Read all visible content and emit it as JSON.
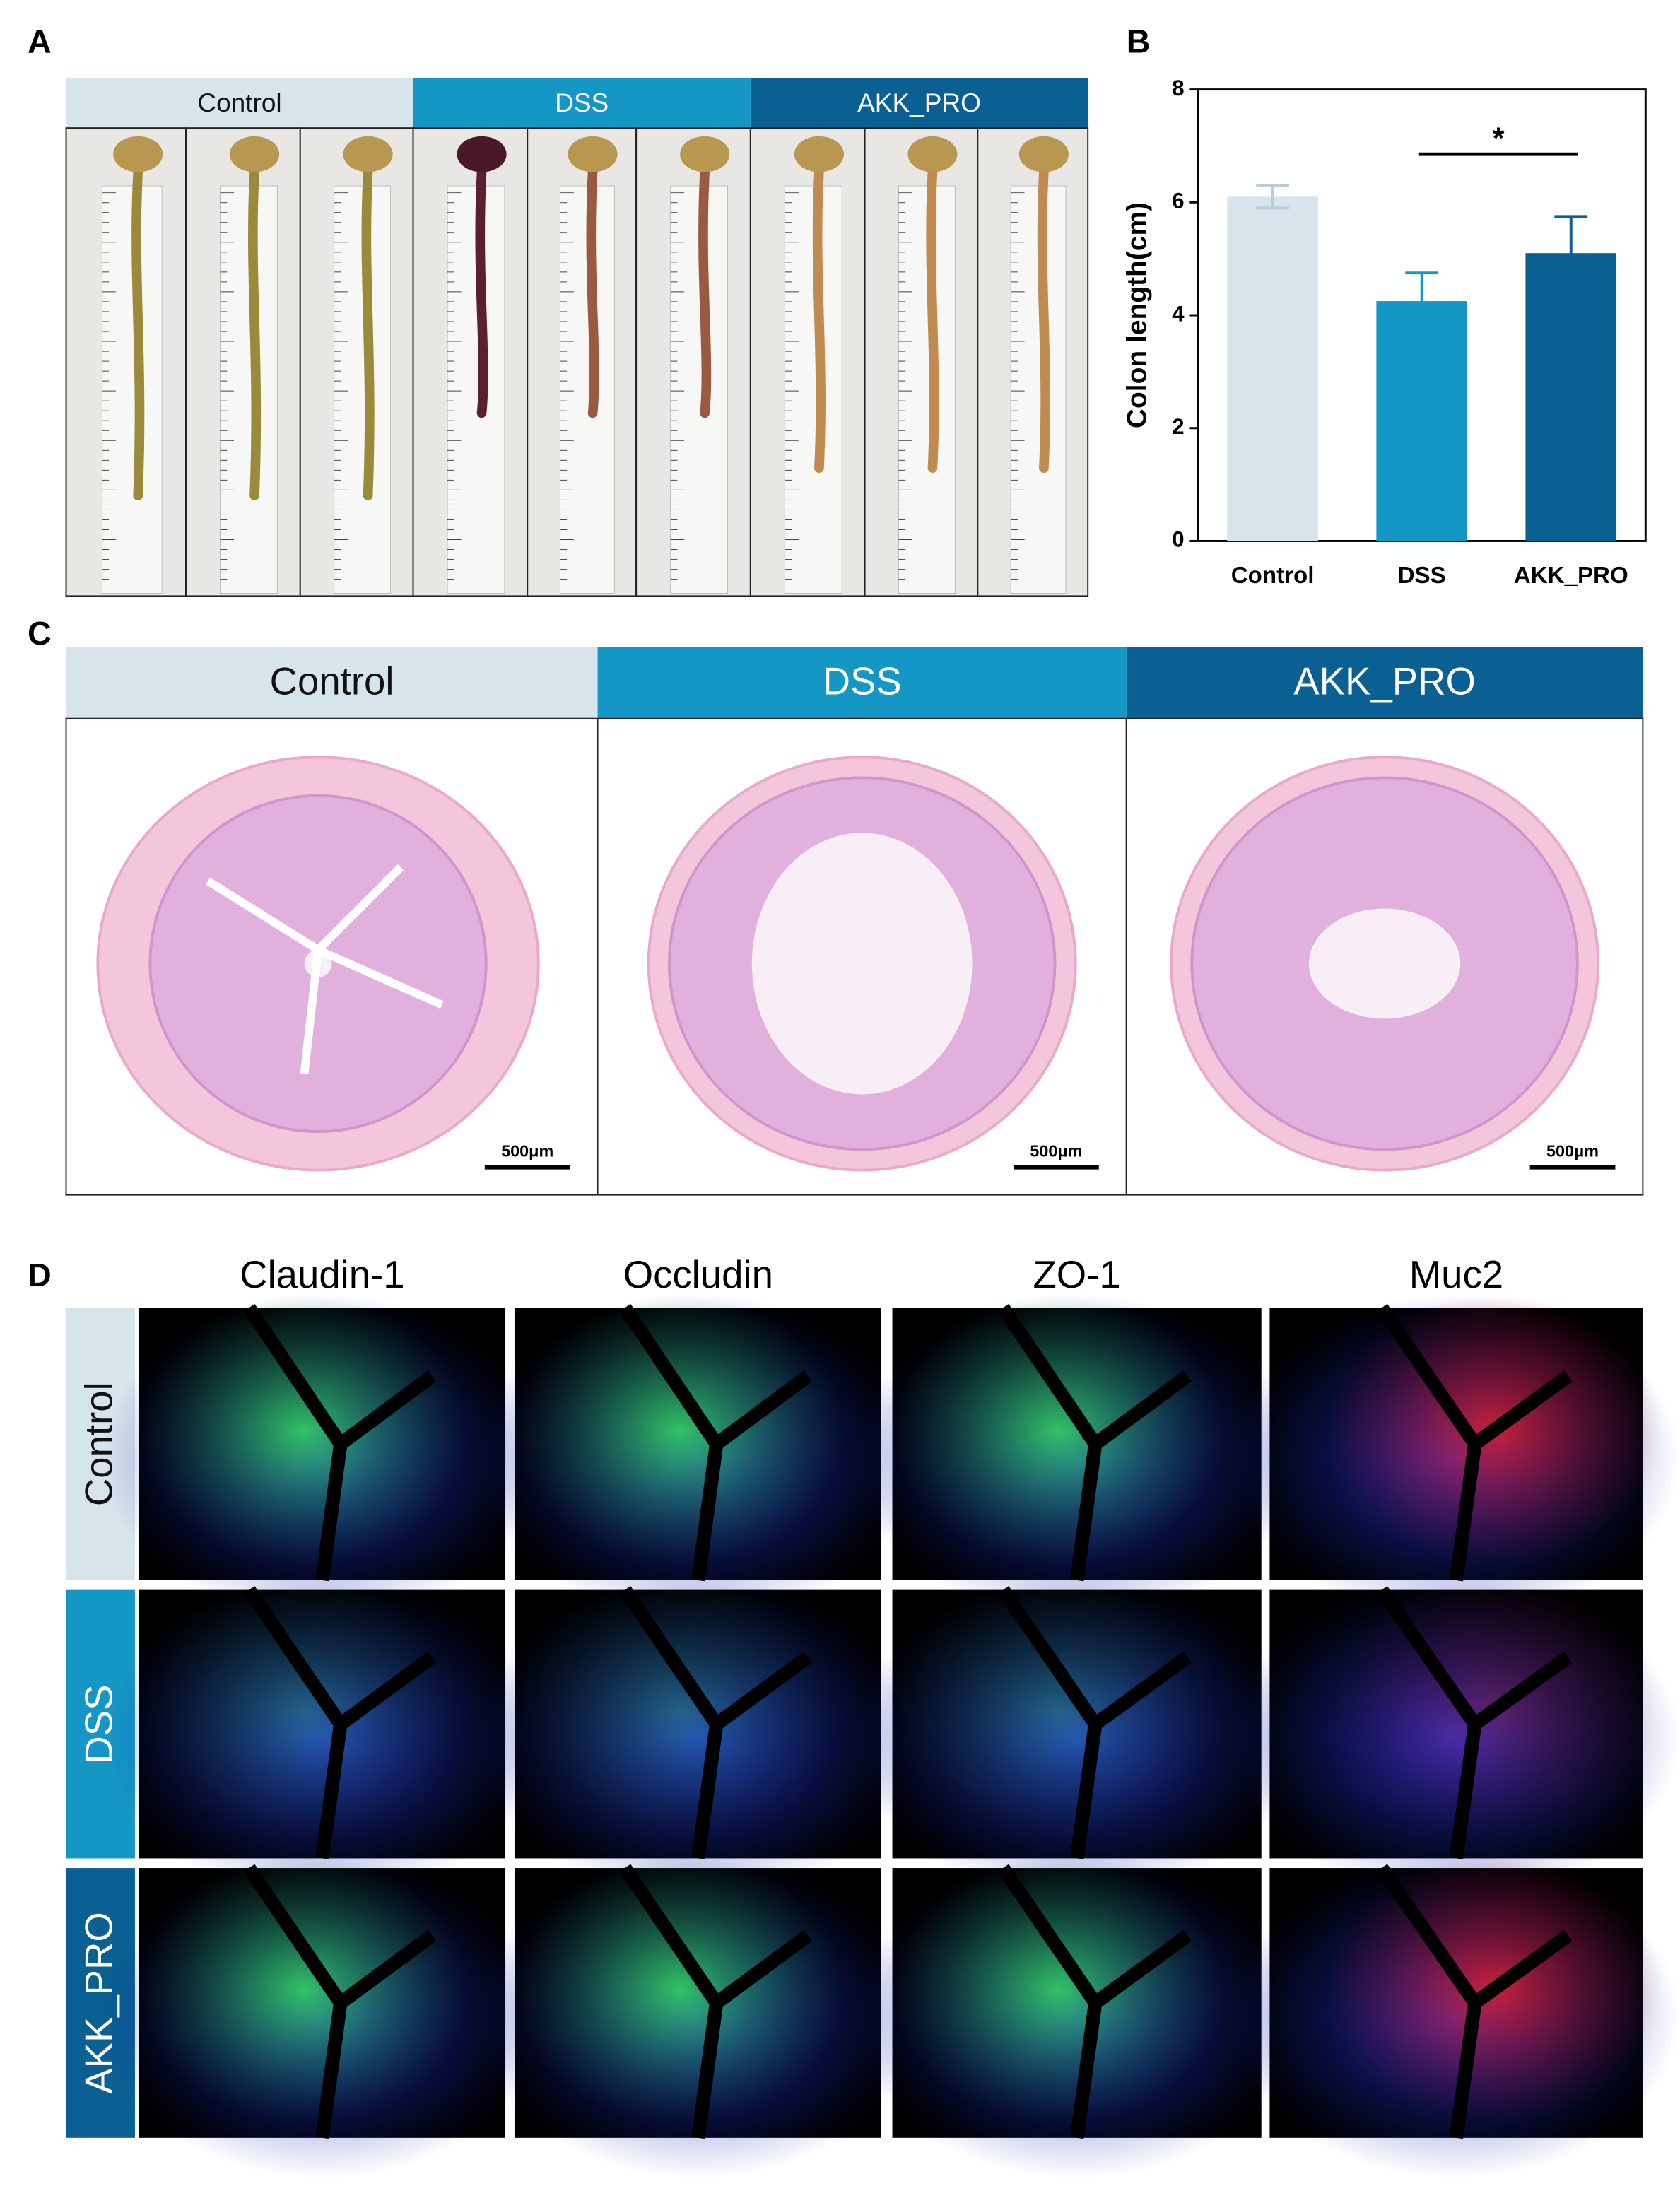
{
  "panels": [
    "A",
    "B",
    "C",
    "D"
  ],
  "groups": [
    "Control",
    "DSS",
    "AKK_PRO"
  ],
  "group_colors": [
    "#d6e4ec",
    "#1597c6",
    "#0a5f93"
  ],
  "scale_bar": "500μm",
  "markers": [
    "Claudin-1",
    "Occludin",
    "ZO-1",
    "Muc2"
  ],
  "chart_data": {
    "type": "bar",
    "y_label": "Colon length(cm)",
    "categories": [
      "Control",
      "DSS",
      "AKK_PRO"
    ],
    "values": [
      6.1,
      4.25,
      5.1
    ],
    "errors": [
      0.2,
      0.5,
      0.65
    ],
    "colors": [
      "#d6e4ec",
      "#1597c6",
      "#0a5f93"
    ],
    "ylim": [
      0,
      8
    ],
    "yticks": [
      0,
      2,
      4,
      6,
      8
    ],
    "significance": {
      "from": 1,
      "to": 2,
      "label": "*"
    }
  }
}
